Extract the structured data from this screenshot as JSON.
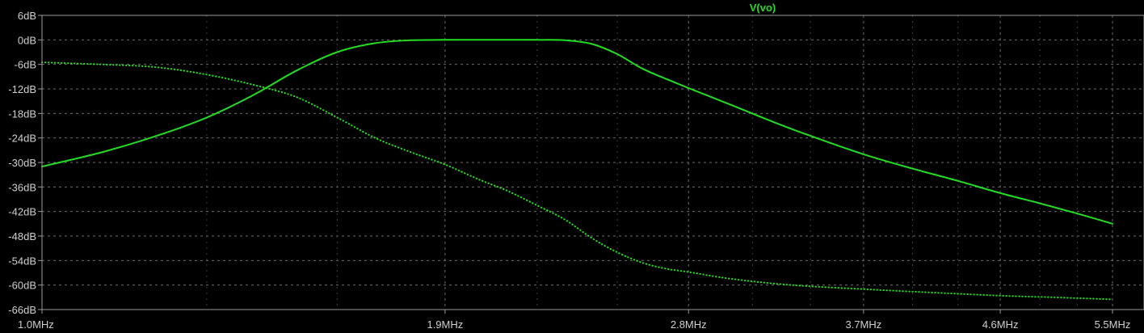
{
  "chart_data": {
    "type": "line",
    "legend": "top-center",
    "x_scale": "log",
    "xlim": [
      "1.0MHz",
      "5.5MHz"
    ],
    "ylim_db": [
      -66,
      6
    ],
    "grid": true,
    "colors": {
      "background": "#000000",
      "grid": "#6b6b6b",
      "frame": "#9a9a9a",
      "tick_text": "#cfcfcf",
      "trace": "#22dd22"
    },
    "x_ticks": [
      {
        "label": "1.0MHz",
        "mhz": 1.0
      },
      {
        "label": "1.9MHz",
        "mhz": 1.9
      },
      {
        "label": "2.8MHz",
        "mhz": 2.8
      },
      {
        "label": "3.7MHz",
        "mhz": 3.7
      },
      {
        "label": "4.6MHz",
        "mhz": 4.6
      },
      {
        "label": "5.5MHz",
        "mhz": 5.5
      }
    ],
    "x_minor_mhz": [
      1.3,
      1.6,
      2.2,
      2.5,
      3.1,
      3.4,
      4.0,
      4.3,
      4.9,
      5.2
    ],
    "y_ticks": [
      {
        "label": "6dB",
        "db": 6
      },
      {
        "label": "0dB",
        "db": 0
      },
      {
        "label": "-6dB",
        "db": -6
      },
      {
        "label": "-12dB",
        "db": -12
      },
      {
        "label": "-18dB",
        "db": -18
      },
      {
        "label": "-24dB",
        "db": -24
      },
      {
        "label": "-30dB",
        "db": -30
      },
      {
        "label": "-36dB",
        "db": -36
      },
      {
        "label": "-42dB",
        "db": -42
      },
      {
        "label": "-48dB",
        "db": -48
      },
      {
        "label": "-54dB",
        "db": -54
      },
      {
        "label": "-60dB",
        "db": -60
      },
      {
        "label": "-66dB",
        "db": -66
      }
    ],
    "series": [
      {
        "name": "V(vo)",
        "style": "solid",
        "points": [
          [
            1.0,
            -31
          ],
          [
            1.1,
            -27.5
          ],
          [
            1.2,
            -23.5
          ],
          [
            1.3,
            -19
          ],
          [
            1.4,
            -13.5
          ],
          [
            1.5,
            -7.5
          ],
          [
            1.6,
            -3
          ],
          [
            1.7,
            -0.8
          ],
          [
            1.8,
            -0.1
          ],
          [
            1.9,
            0
          ],
          [
            2.0,
            0
          ],
          [
            2.1,
            0
          ],
          [
            2.2,
            0
          ],
          [
            2.3,
            -0.1
          ],
          [
            2.4,
            -1
          ],
          [
            2.5,
            -3.5
          ],
          [
            2.6,
            -7
          ],
          [
            2.7,
            -9.5
          ],
          [
            2.8,
            -11.8
          ],
          [
            3.0,
            -16
          ],
          [
            3.2,
            -20
          ],
          [
            3.4,
            -23.5
          ],
          [
            3.7,
            -28
          ],
          [
            4.0,
            -31.5
          ],
          [
            4.3,
            -34.5
          ],
          [
            4.6,
            -37.5
          ],
          [
            4.9,
            -40
          ],
          [
            5.2,
            -42.5
          ],
          [
            5.5,
            -45
          ]
        ]
      },
      {
        "style": "dotted",
        "points": [
          [
            1.0,
            -5.5
          ],
          [
            1.1,
            -6
          ],
          [
            1.2,
            -6.7
          ],
          [
            1.3,
            -8.5
          ],
          [
            1.4,
            -11
          ],
          [
            1.5,
            -14
          ],
          [
            1.6,
            -19
          ],
          [
            1.7,
            -24
          ],
          [
            1.8,
            -27.5
          ],
          [
            1.9,
            -30.5
          ],
          [
            2.0,
            -34
          ],
          [
            2.1,
            -37
          ],
          [
            2.2,
            -40.5
          ],
          [
            2.3,
            -44
          ],
          [
            2.4,
            -48.5
          ],
          [
            2.5,
            -52
          ],
          [
            2.6,
            -54.5
          ],
          [
            2.7,
            -56
          ],
          [
            2.8,
            -56.8
          ],
          [
            3.0,
            -58.5
          ],
          [
            3.3,
            -60
          ],
          [
            3.7,
            -61
          ],
          [
            4.0,
            -61.6
          ],
          [
            4.6,
            -62.6
          ],
          [
            5.0,
            -63
          ],
          [
            5.5,
            -63.5
          ]
        ]
      }
    ]
  }
}
